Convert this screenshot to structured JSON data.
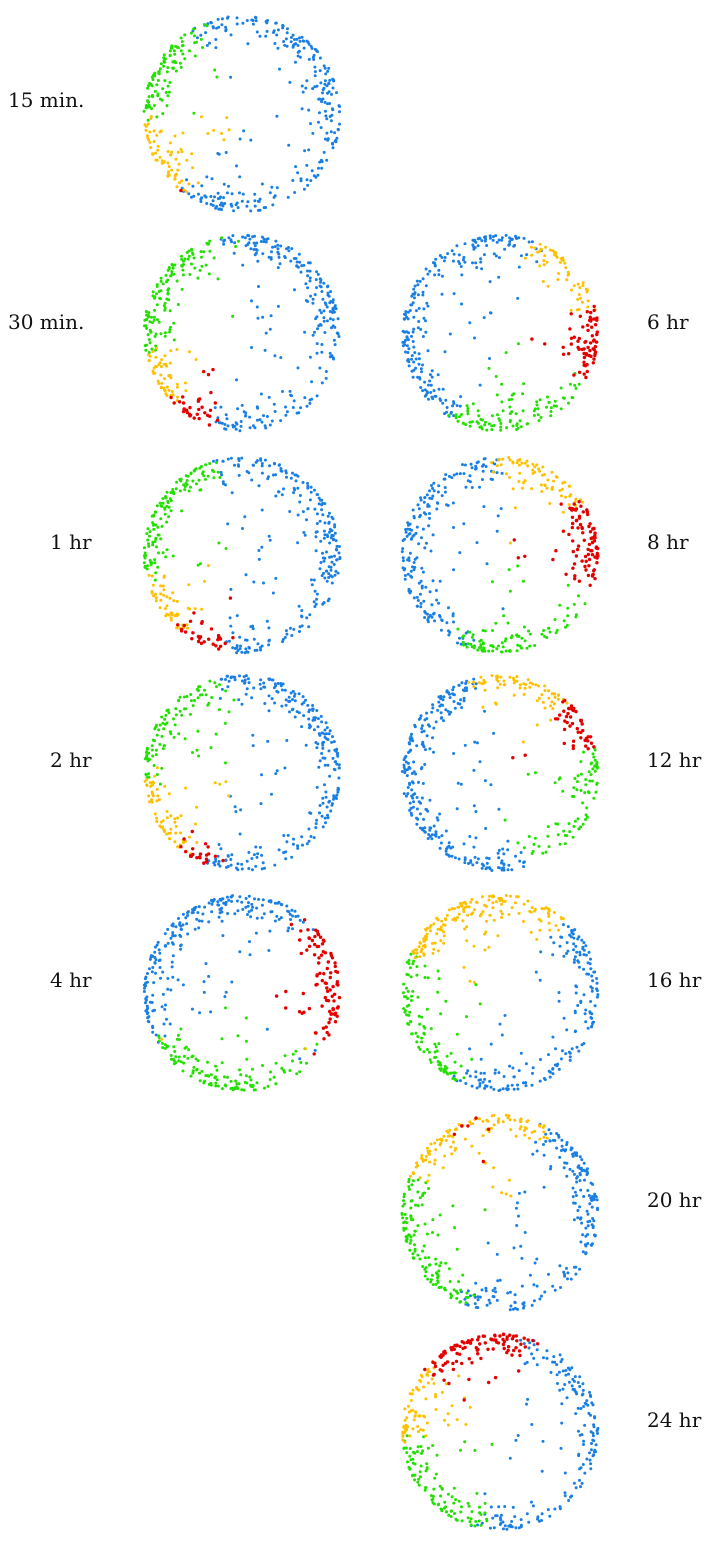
{
  "colors": {
    "blue": "#1a7fe3",
    "green": "#22e000",
    "yellow": "#ffc000",
    "red": "#e50000",
    "gray": "#8c8c8c"
  },
  "chart_data": [
    {
      "type": "scatter",
      "label": "15 min.",
      "profile": {
        "blue": [
          -30,
          120,
          0.95
        ],
        "green": [
          170,
          45,
          0.9
        ],
        "yellow": [
          200,
          40,
          1.0
        ],
        "red": [
          225,
          25,
          0.45
        ],
        "gray": [
          -15,
          50,
          0.25
        ]
      }
    },
    {
      "type": "scatter",
      "label": "30 min.",
      "profile": {
        "blue": [
          -20,
          120,
          0.95
        ],
        "green": [
          165,
          60,
          0.9
        ],
        "yellow": [
          205,
          40,
          0.85
        ],
        "red": [
          235,
          25,
          0.8
        ],
        "gray": [
          5,
          40,
          0.3
        ]
      }
    },
    {
      "type": "scatter",
      "label": "1 hr",
      "profile": {
        "blue": [
          -20,
          120,
          0.95
        ],
        "green": [
          170,
          60,
          0.9
        ],
        "yellow": [
          210,
          45,
          0.85
        ],
        "red": [
          245,
          35,
          0.8
        ],
        "gray": [
          -30,
          40,
          0.25
        ]
      }
    },
    {
      "type": "scatter",
      "label": "2 hr",
      "profile": {
        "blue": [
          -15,
          120,
          0.95
        ],
        "green": [
          160,
          60,
          0.9
        ],
        "yellow": [
          200,
          45,
          0.9
        ],
        "red": [
          240,
          30,
          0.55
        ],
        "gray": [
          20,
          40,
          0.25
        ]
      }
    },
    {
      "type": "scatter",
      "label": "4 hr",
      "profile": {
        "blue": [
          150,
          80,
          0.95
        ],
        "green": [
          245,
          50,
          0.9
        ],
        "yellow": [
          220,
          60,
          0.5
        ],
        "red": [
          10,
          30,
          0.9
        ],
        "gray": [
          160,
          40,
          0.25
        ]
      }
    },
    {
      "type": "scatter",
      "label": "6 hr",
      "profile": {
        "blue": [
          175,
          95,
          0.95
        ],
        "green": [
          270,
          50,
          0.9
        ],
        "yellow": [
          30,
          45,
          0.6
        ],
        "red": [
          0,
          25,
          0.85
        ],
        "gray": [
          120,
          40,
          0.25
        ]
      }
    },
    {
      "type": "scatter",
      "label": "8 hr",
      "profile": {
        "blue": [
          185,
          95,
          0.95
        ],
        "green": [
          275,
          60,
          0.85
        ],
        "yellow": [
          50,
          45,
          0.8
        ],
        "red": [
          20,
          35,
          0.85
        ],
        "gray": [
          130,
          40,
          0.3
        ]
      }
    },
    {
      "type": "scatter",
      "label": "12 hr",
      "profile": {
        "blue": [
          200,
          100,
          0.95
        ],
        "green": [
          330,
          60,
          0.85
        ],
        "yellow": [
          65,
          45,
          0.8
        ],
        "red": [
          35,
          30,
          0.8
        ],
        "gray": [
          210,
          40,
          0.4
        ]
      }
    },
    {
      "type": "scatter",
      "label": "16 hr",
      "profile": {
        "blue": [
          310,
          90,
          0.95
        ],
        "green": [
          195,
          70,
          0.95
        ],
        "yellow": [
          120,
          70,
          0.95
        ],
        "red": [
          90,
          25,
          0.5
        ],
        "gray": [
          260,
          40,
          0.35
        ]
      }
    },
    {
      "type": "scatter",
      "label": "20 hr",
      "profile": {
        "blue": [
          305,
          90,
          0.95
        ],
        "green": [
          200,
          75,
          0.95
        ],
        "yellow": [
          130,
          55,
          0.9
        ],
        "red": [
          115,
          30,
          0.75
        ],
        "gray": [
          330,
          40,
          0.4
        ]
      }
    },
    {
      "type": "scatter",
      "label": "24 hr",
      "profile": {
        "blue": [
          310,
          90,
          0.95
        ],
        "green": [
          220,
          70,
          0.95
        ],
        "yellow": [
          160,
          50,
          0.9
        ],
        "red": [
          120,
          35,
          0.95
        ],
        "gray": [
          345,
          40,
          0.5
        ]
      }
    }
  ]
}
